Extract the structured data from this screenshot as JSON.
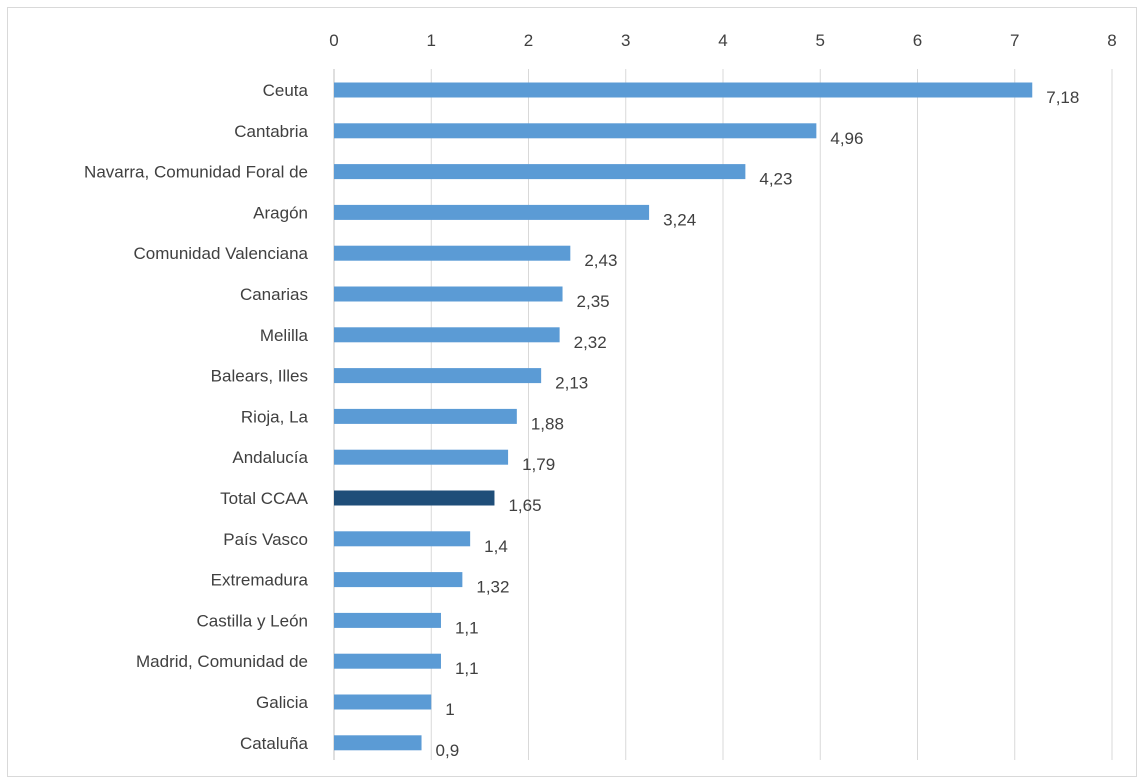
{
  "chart_data": {
    "type": "bar",
    "orientation": "horizontal",
    "categories": [
      "Ceuta",
      "Cantabria",
      "Navarra, Comunidad Foral de",
      "Aragón",
      "Comunidad Valenciana",
      "Canarias",
      "Melilla",
      "Balears, Illes",
      "Rioja, La",
      "Andalucía",
      "Total CCAA",
      "País Vasco",
      "Extremadura",
      "Castilla y León",
      "Madrid, Comunidad de",
      "Galicia",
      "Cataluña"
    ],
    "values": [
      7.18,
      4.96,
      4.23,
      3.24,
      2.43,
      2.35,
      2.32,
      2.13,
      1.88,
      1.79,
      1.65,
      1.4,
      1.32,
      1.1,
      1.1,
      1,
      0.9
    ],
    "data_labels": [
      "7,18",
      "4,96",
      "4,23",
      "3,24",
      "2,43",
      "2,35",
      "2,32",
      "2,13",
      "1,88",
      "1,79",
      "1,65",
      "1,4",
      "1,32",
      "1,1",
      "1,1",
      "1",
      "0,9"
    ],
    "xlim": [
      0,
      8
    ],
    "xticks": [
      "0",
      "1",
      "2",
      "3",
      "4",
      "5",
      "6",
      "7",
      "8"
    ],
    "x_axis_position": "top",
    "grid": true,
    "legend": "none",
    "title": "",
    "xlabel": "",
    "ylabel": "",
    "colors": {
      "bar": "#5b9bd5",
      "highlight_bar": "#1f4e79",
      "highlight_category": "Total CCAA",
      "grid": "#d9d9d9",
      "text": "#404040"
    }
  }
}
